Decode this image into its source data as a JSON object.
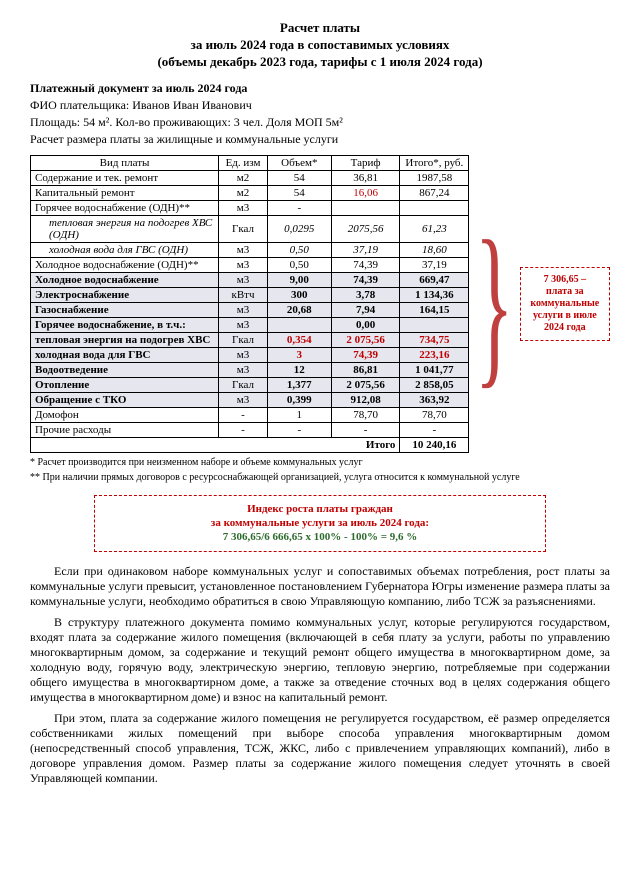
{
  "title": {
    "l1": "Расчет платы",
    "l2": "за июль 2024 года в сопоставимых условиях",
    "l3": "(объемы декабрь 2023 года, тарифы с 1 июля 2024 года)"
  },
  "header": {
    "doc": "Платежный документ за июль 2024 года",
    "fio_label": "ФИО плательщика: ",
    "fio": "Иванов Иван Иванович",
    "area": "Площадь: 54 м². Кол-во проживающих: 3 чел. Доля МОП 5м²",
    "calc": "Расчет размера платы за жилищные и коммунальные услуги"
  },
  "columns": {
    "c1": "Вид платы",
    "c2": "Ед. изм",
    "c3": "Объем*",
    "c4": "Тариф",
    "c5": "Итого*, руб."
  },
  "rows": [
    {
      "n": "Содержание и тек. ремонт",
      "u": "м2",
      "v": "54",
      "t": "36,81",
      "s": "1987,58"
    },
    {
      "n": "Капитальный ремонт",
      "u": "м2",
      "v": "54",
      "t": "16,06",
      "s": "867,24",
      "tred": true
    },
    {
      "n": "Горячее водоснабжение  (ОДН)**",
      "u": "м3",
      "v": "-",
      "t": "",
      "s": ""
    },
    {
      "n": "тепловая энергия на подогрев ХВС (ОДН)",
      "u": "Гкал",
      "v": "0,0295",
      "t": "2075,56",
      "s": "61,23",
      "italic": true
    },
    {
      "n": "холодная вода для ГВС (ОДН)",
      "u": "м3",
      "v": "0,50",
      "t": "37,19",
      "s": "18,60",
      "italic": true
    },
    {
      "n": "Холодное водоснабжение  (ОДН)**",
      "u": "м3",
      "v": "0,50",
      "t": "74,39",
      "s": "37,19"
    },
    {
      "n": "Холодное водоснабжение",
      "u": "м3",
      "v": "9,00",
      "t": "74,39",
      "s": "669,47",
      "bold": true,
      "shade": true
    },
    {
      "n": "Электроснабжение",
      "u": "кВтч",
      "v": "300",
      "t": "3,78",
      "s": "1 134,36",
      "bold": true,
      "shade": true
    },
    {
      "n": "Газоснабжение",
      "u": "м3",
      "v": "20,68",
      "t": "7,94",
      "s": "164,15",
      "bold": true,
      "shade": true
    },
    {
      "n": "Горячее водоснабжение, в т.ч.:",
      "u": "м3",
      "v": "",
      "t": "0,00",
      "s": "",
      "bold": true,
      "shade": true
    },
    {
      "n": "тепловая энергия на подогрев ХВС",
      "u": "Гкал",
      "v": "0,354",
      "t": "2 075,56",
      "s": "734,75",
      "bold": true,
      "shade": true,
      "red": true
    },
    {
      "n": "холодная вода для ГВС",
      "u": "м3",
      "v": "3",
      "t": "74,39",
      "s": "223,16",
      "bold": true,
      "shade": true,
      "red": true
    },
    {
      "n": "Водоотведение",
      "u": "м3",
      "v": "12",
      "t": "86,81",
      "s": "1 041,77",
      "bold": true,
      "shade": true
    },
    {
      "n": "Отопление",
      "u": "Гкал",
      "v": "1,377",
      "t": "2 075,56",
      "s": "2 858,05",
      "bold": true,
      "shade": true
    },
    {
      "n": "Обращение с ТКО",
      "u": "м3",
      "v": "0,399",
      "t": "912,08",
      "s": "363,92",
      "bold": true,
      "shade": true
    },
    {
      "n": "Домофон",
      "u": "-",
      "v": "1",
      "t": "78,70",
      "s": "78,70"
    },
    {
      "n": "Прочие расходы",
      "u": "-",
      "v": "-",
      "t": "-",
      "s": "-"
    }
  ],
  "total": {
    "label": "Итого",
    "value": "10 240,16"
  },
  "sidebox": {
    "sum": "7 306,65 –",
    "text": "плата за коммунальные услуги в июле 2024 года"
  },
  "footnotes": {
    "f1": "* Расчет производится при неизменном наборе и объеме коммунальных услуг",
    "f2": "** При наличии прямых договоров с ресурсоснабжающей организацией, услуга относится к коммунальной услуге"
  },
  "index": {
    "l1": "Индекс роста платы граждан",
    "l2": "за коммунальные услуги за июль 2024 года:",
    "l3": "7 306,65/6 666,65 х 100% - 100% = 9,6 %"
  },
  "paras": {
    "p1": "Если при одинаковом наборе коммунальных услуг и сопоставимых объемах потребления, рост платы за коммунальные услуги превысит, установленное постановлением Губернатора Югры изменение размера платы за коммунальные услуги, необходимо обратиться в свою Управляющую компанию, либо ТСЖ за разъяснениями.",
    "p2": "В структуру платежного документа помимо коммунальных услуг, которые регулируются государством, входят плата за содержание жилого помещения (включающей в себя плату за услуги, работы по управлению многоквартирным домом, за содержание и текущий ремонт общего имущества в многоквартирном доме, за холодную воду, горячую воду, электрическую энергию, тепловую энергию, потребляемые при содержании общего имущества в многоквартирном доме, а также за отведение сточных вод в целях содержания общего имущества в многоквартирном доме) и взнос на капитальный ремонт.",
    "p3": "При этом, плата за содержание жилого помещения не регулируется государством, её размер определяется собственниками жилых помещений при выборе способа управления многоквартирным домом (непосредственный способ управления, ТСЖ, ЖКС, либо с привлечением управляющих компаний), либо в договоре управления домом. Размер платы за содержание жилого помещения следует уточнять в своей Управляющей компании."
  }
}
